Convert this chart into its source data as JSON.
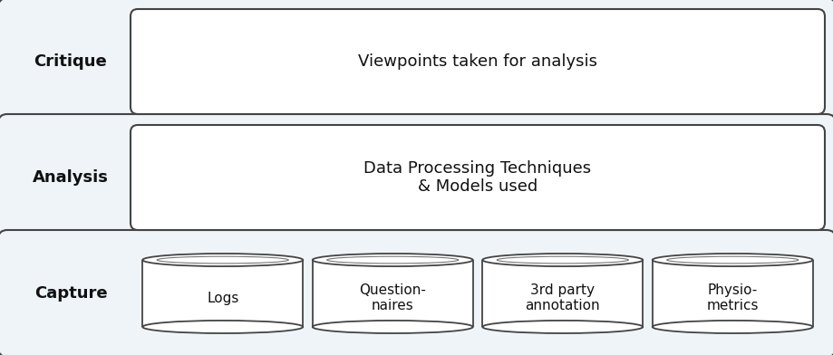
{
  "bg_color": "#eef4f8",
  "inner_box_color": "#ffffff",
  "border_color": "#444444",
  "text_color": "#111111",
  "rows": [
    {
      "label": "Critique",
      "inner_text": "Viewpoints taken for analysis",
      "type": "single_box"
    },
    {
      "label": "Analysis",
      "inner_text": "Data Processing Techniques\n& Models used",
      "type": "single_box"
    },
    {
      "label": "Capture",
      "inner_text": "",
      "type": "cylinders",
      "cylinders": [
        "Logs",
        "Question-\nnaires",
        "3rd party\nannotation",
        "Physio-\nmetrics"
      ]
    }
  ],
  "figure_width": 9.2,
  "figure_height": 3.92,
  "dpi": 100,
  "label_fontsize": 13,
  "inner_fontsize": 13,
  "cyl_fontsize": 11
}
